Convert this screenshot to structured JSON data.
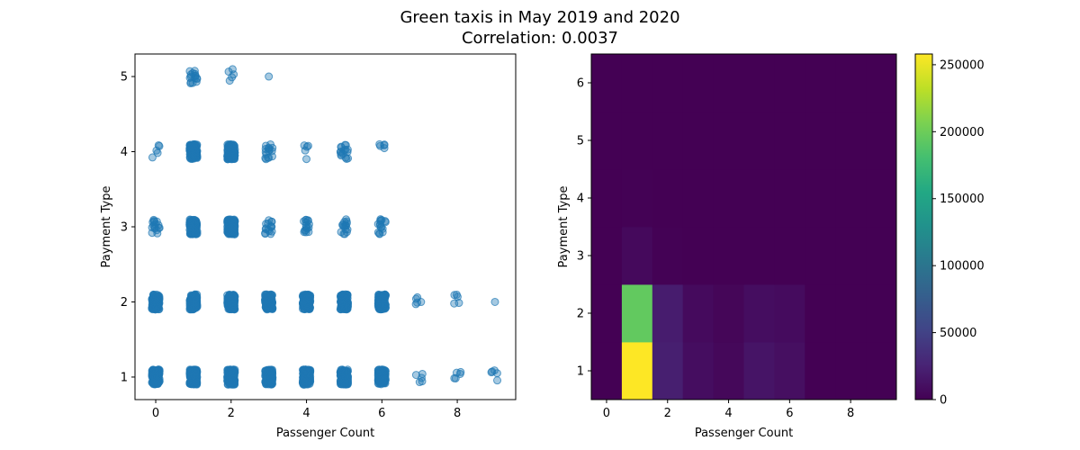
{
  "figure": {
    "title_line1": "Green taxis in May 2019 and 2020",
    "title_line2": "Correlation: 0.0037"
  },
  "chart_data": [
    {
      "type": "scatter",
      "xlabel": "Passenger Count",
      "ylabel": "Payment Type",
      "xlim": [
        -0.55,
        9.55
      ],
      "ylim": [
        0.7,
        5.3
      ],
      "xticks": [
        0,
        2,
        4,
        6,
        8
      ],
      "yticks": [
        1,
        2,
        3,
        4,
        5
      ],
      "color": "#1f77b4",
      "alpha": 0.4,
      "grid": false,
      "jittered_points": true,
      "clusters": [
        {
          "x": 0,
          "y": 1,
          "density": "dense"
        },
        {
          "x": 0,
          "y": 2,
          "density": "dense"
        },
        {
          "x": 0,
          "y": 3,
          "density": "medium"
        },
        {
          "x": 0,
          "y": 4,
          "density": "sparse"
        },
        {
          "x": 1,
          "y": 1,
          "density": "dense"
        },
        {
          "x": 1,
          "y": 2,
          "density": "dense"
        },
        {
          "x": 1,
          "y": 3,
          "density": "dense"
        },
        {
          "x": 1,
          "y": 4,
          "density": "dense"
        },
        {
          "x": 1,
          "y": 5,
          "density": "medium"
        },
        {
          "x": 2,
          "y": 1,
          "density": "dense"
        },
        {
          "x": 2,
          "y": 2,
          "density": "dense"
        },
        {
          "x": 2,
          "y": 3,
          "density": "dense"
        },
        {
          "x": 2,
          "y": 4,
          "density": "dense"
        },
        {
          "x": 2,
          "y": 5,
          "density": "sparse"
        },
        {
          "x": 3,
          "y": 1,
          "density": "dense"
        },
        {
          "x": 3,
          "y": 2,
          "density": "dense"
        },
        {
          "x": 3,
          "y": 3,
          "density": "medium"
        },
        {
          "x": 3,
          "y": 4,
          "density": "medium"
        },
        {
          "x": 3,
          "y": 5,
          "density": "single"
        },
        {
          "x": 4,
          "y": 1,
          "density": "dense"
        },
        {
          "x": 4,
          "y": 2,
          "density": "dense"
        },
        {
          "x": 4,
          "y": 3,
          "density": "medium"
        },
        {
          "x": 4,
          "y": 4,
          "density": "sparse"
        },
        {
          "x": 5,
          "y": 1,
          "density": "dense"
        },
        {
          "x": 5,
          "y": 2,
          "density": "dense"
        },
        {
          "x": 5,
          "y": 3,
          "density": "medium"
        },
        {
          "x": 5,
          "y": 4,
          "density": "medium"
        },
        {
          "x": 6,
          "y": 1,
          "density": "dense"
        },
        {
          "x": 6,
          "y": 2,
          "density": "dense"
        },
        {
          "x": 6,
          "y": 3,
          "density": "medium"
        },
        {
          "x": 6,
          "y": 4,
          "density": "sparse"
        },
        {
          "x": 7,
          "y": 1,
          "density": "sparse"
        },
        {
          "x": 7,
          "y": 2,
          "density": "sparse"
        },
        {
          "x": 8,
          "y": 1,
          "density": "sparse"
        },
        {
          "x": 8,
          "y": 2,
          "density": "sparse"
        },
        {
          "x": 9,
          "y": 1,
          "density": "sparse"
        },
        {
          "x": 9,
          "y": 2,
          "density": "single"
        }
      ]
    },
    {
      "type": "heatmap",
      "xlabel": "Passenger Count",
      "ylabel": "Payment Type",
      "xlim": [
        -0.5,
        9.5
      ],
      "ylim": [
        0.5,
        6.5
      ],
      "xticks": [
        0,
        2,
        4,
        6,
        8
      ],
      "yticks": [
        1,
        2,
        3,
        4,
        5,
        6
      ],
      "x_bins": [
        0,
        1,
        2,
        3,
        4,
        5,
        6,
        7,
        8,
        9
      ],
      "y_bins": [
        1,
        2,
        3,
        4,
        5,
        6
      ],
      "counts": [
        [
          0,
          258000,
          22000,
          9000,
          5000,
          14000,
          10000,
          0,
          0,
          0
        ],
        [
          0,
          195000,
          20000,
          7000,
          3500,
          9000,
          7500,
          0,
          0,
          0
        ],
        [
          0,
          6000,
          800,
          300,
          200,
          300,
          250,
          0,
          0,
          0
        ],
        [
          0,
          800,
          150,
          60,
          30,
          50,
          40,
          0,
          0,
          0
        ],
        [
          0,
          30,
          5,
          2,
          0,
          0,
          0,
          0,
          0,
          0
        ],
        [
          0,
          0,
          0,
          0,
          0,
          0,
          0,
          0,
          0,
          0
        ]
      ],
      "colormap": "viridis",
      "colorbar": {
        "min": 0,
        "max": 258000,
        "ticks": [
          0,
          50000,
          100000,
          150000,
          200000,
          250000
        ],
        "tick_labels": [
          "0",
          "50000",
          "100000",
          "150000",
          "200000",
          "250000"
        ]
      }
    }
  ]
}
